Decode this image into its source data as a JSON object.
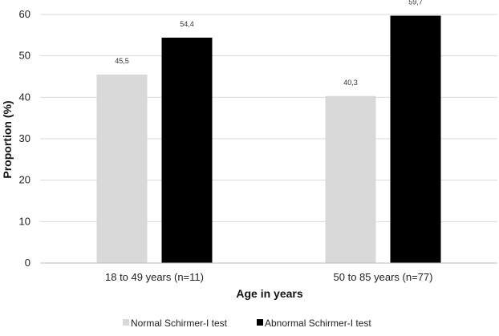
{
  "chart_data": {
    "type": "bar",
    "categories": [
      "18 to 49 years (n=11)",
      "50 to 85 years  (n=77)"
    ],
    "series": [
      {
        "name": "Normal Schirmer-I test",
        "values": [
          45.5,
          40.3
        ],
        "labels": [
          "45,5",
          "40,3"
        ],
        "color": "#d9d9d9"
      },
      {
        "name": "Abnormal Schirmer-I test",
        "values": [
          54.4,
          59.7
        ],
        "labels": [
          "54,4",
          "59,7"
        ],
        "color": "#000000"
      }
    ],
    "xlabel": "Age in years",
    "ylabel": "Proportion (%)",
    "ylim": [
      0,
      60
    ],
    "yticks": [
      0,
      10,
      20,
      30,
      40,
      50,
      60
    ],
    "grid": true,
    "legend_position": "bottom"
  }
}
